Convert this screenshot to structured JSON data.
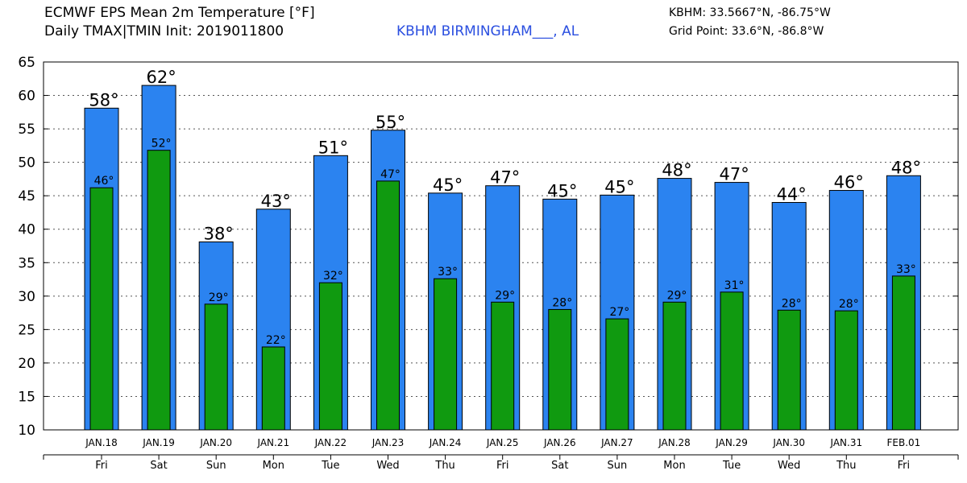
{
  "header": {
    "title_line1": "ECMWF EPS Mean 2m Temperature [°F]",
    "title_line2": "Daily TMAX|TMIN Init: 2019011800",
    "station": "KBHM BIRMINGHAM___, AL",
    "coords": "KBHM: 33.5667°N, -86.75°W",
    "grid_point": "Grid Point: 33.6°N, -86.8°W"
  },
  "colors": {
    "tmax": "#2b83f0",
    "tmin": "#109a10",
    "outline": "#000000"
  },
  "chart_data": {
    "type": "bar",
    "title": "ECMWF EPS Mean 2m Temperature [°F]",
    "xlabel": "",
    "ylabel": "",
    "ylim": [
      10,
      65
    ],
    "yticks": [
      10,
      15,
      20,
      25,
      30,
      35,
      40,
      45,
      50,
      55,
      60,
      65
    ],
    "grid": true,
    "categories": [
      "JAN.18",
      "JAN.19",
      "JAN.20",
      "JAN.21",
      "JAN.22",
      "JAN.23",
      "JAN.24",
      "JAN.25",
      "JAN.26",
      "JAN.27",
      "JAN.28",
      "JAN.29",
      "JAN.30",
      "JAN.31",
      "FEB.01"
    ],
    "days": [
      "Fri",
      "Sat",
      "Sun",
      "Mon",
      "Tue",
      "Wed",
      "Thu",
      "Fri",
      "Sat",
      "Sun",
      "Mon",
      "Tue",
      "Wed",
      "Thu",
      "Fri"
    ],
    "series": [
      {
        "name": "TMAX",
        "values": [
          58.1,
          61.5,
          38.1,
          43.0,
          51.0,
          54.8,
          45.4,
          46.5,
          44.5,
          45.1,
          47.6,
          47.0,
          44.0,
          45.8,
          48.0
        ],
        "labels": [
          "58°",
          "62°",
          "38°",
          "43°",
          "51°",
          "55°",
          "45°",
          "47°",
          "45°",
          "45°",
          "48°",
          "47°",
          "44°",
          "46°",
          "48°"
        ]
      },
      {
        "name": "TMIN",
        "values": [
          46.2,
          51.8,
          28.8,
          22.4,
          32.0,
          47.2,
          32.6,
          29.1,
          28.0,
          26.6,
          29.1,
          30.6,
          27.9,
          27.8,
          33.0
        ],
        "labels": [
          "46°",
          "52°",
          "29°",
          "22°",
          "32°",
          "47°",
          "33°",
          "29°",
          "28°",
          "27°",
          "29°",
          "31°",
          "28°",
          "28°",
          "33°"
        ]
      }
    ]
  }
}
